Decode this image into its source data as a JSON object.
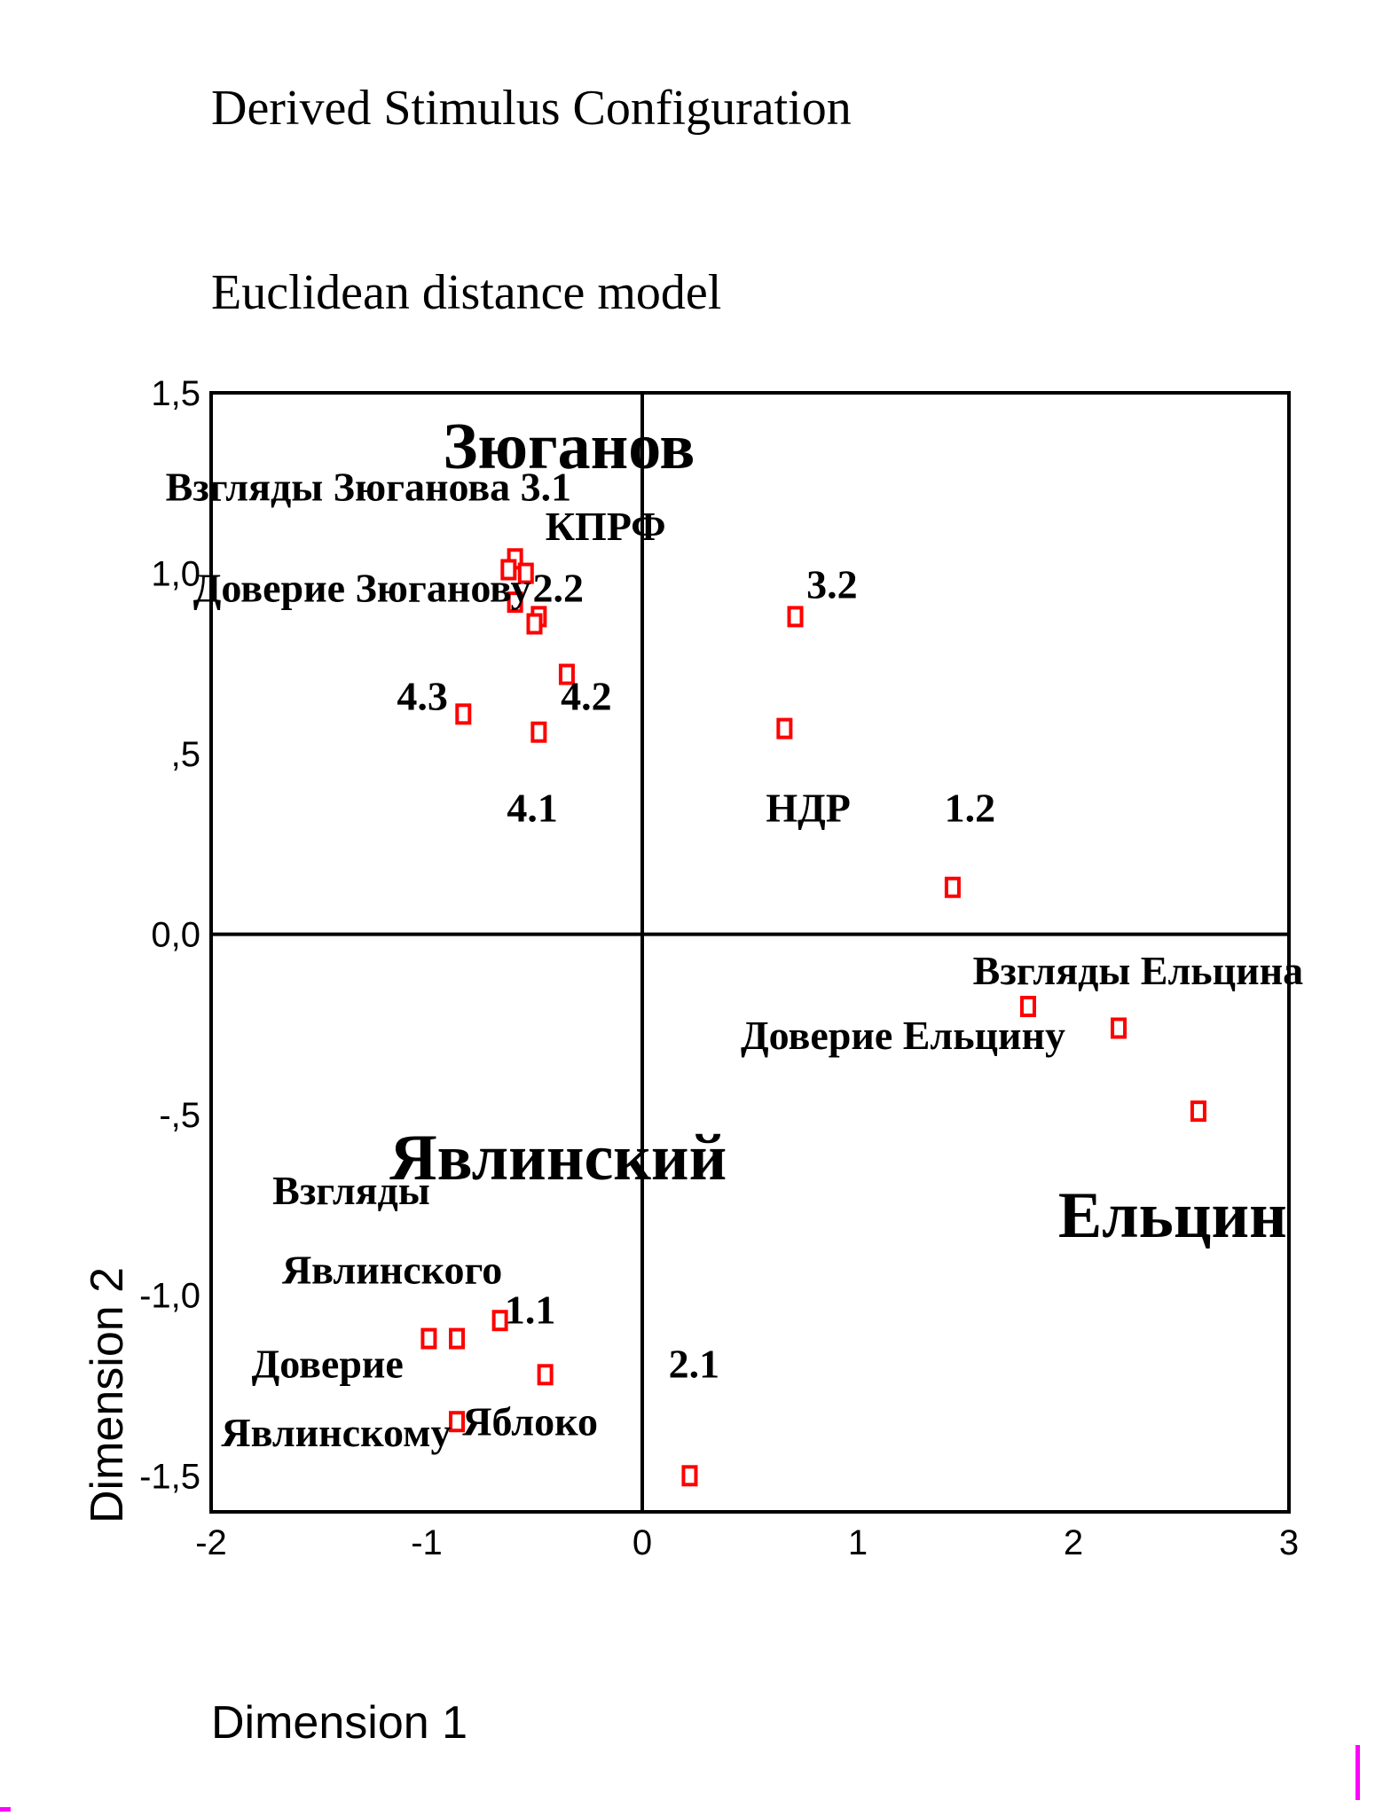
{
  "chart_data": {
    "type": "scatter",
    "title": "Derived Stimulus Configuration",
    "subtitle": "Euclidean distance model",
    "xlabel": "Dimension 1",
    "ylabel": "Dimension 2",
    "xlim": [
      -2,
      3
    ],
    "ylim": [
      -1.6,
      1.5
    ],
    "xticks": [
      {
        "value": -2,
        "label": "-2"
      },
      {
        "value": -1,
        "label": "-1"
      },
      {
        "value": 0,
        "label": "0"
      },
      {
        "value": 1,
        "label": "1"
      },
      {
        "value": 2,
        "label": "2"
      },
      {
        "value": 3,
        "label": "3"
      }
    ],
    "yticks": [
      {
        "value": 1.5,
        "label": "1,5"
      },
      {
        "value": 1.0,
        "label": "1,0"
      },
      {
        "value": 0.5,
        "label": ",5"
      },
      {
        "value": 0.0,
        "label": "0,0"
      },
      {
        "value": -0.5,
        "label": "-,5"
      },
      {
        "value": -1.0,
        "label": "-1,0"
      },
      {
        "value": -1.5,
        "label": "-1,5"
      }
    ],
    "points": [
      {
        "x": -0.59,
        "y": 1.04
      },
      {
        "x": -0.62,
        "y": 1.01
      },
      {
        "x": -0.54,
        "y": 1.0
      },
      {
        "x": -0.59,
        "y": 0.92
      },
      {
        "x": -0.48,
        "y": 0.88
      },
      {
        "x": -0.5,
        "y": 0.86
      },
      {
        "x": -0.35,
        "y": 0.72
      },
      {
        "x": -0.83,
        "y": 0.61
      },
      {
        "x": -0.48,
        "y": 0.56
      },
      {
        "x": 0.71,
        "y": 0.88
      },
      {
        "x": 0.66,
        "y": 0.57
      },
      {
        "x": 1.44,
        "y": 0.13
      },
      {
        "x": 1.79,
        "y": -0.2
      },
      {
        "x": 2.21,
        "y": -0.26
      },
      {
        "x": 2.58,
        "y": -0.49
      },
      {
        "x": -0.66,
        "y": -1.07
      },
      {
        "x": -0.99,
        "y": -1.12
      },
      {
        "x": -0.86,
        "y": -1.12
      },
      {
        "x": -0.45,
        "y": -1.22
      },
      {
        "x": -0.86,
        "y": -1.35
      },
      {
        "x": 0.22,
        "y": -1.5
      }
    ],
    "annotations": [
      {
        "text": "Зюганов",
        "size": "large",
        "x": -0.34,
        "y": 1.35
      },
      {
        "text": "Взгляды Зюганова 3.1",
        "size": "normal",
        "x": -1.27,
        "y": 1.24
      },
      {
        "text": "КПРФ",
        "size": "normal",
        "x": -0.17,
        "y": 1.13
      },
      {
        "text": "Доверие Зюганову",
        "size": "normal",
        "x": -1.3,
        "y": 0.96
      },
      {
        "text": "2.2",
        "size": "normal",
        "x": -0.39,
        "y": 0.96
      },
      {
        "text": "3.2",
        "size": "normal",
        "x": 0.88,
        "y": 0.97
      },
      {
        "text": "4.3",
        "size": "normal",
        "x": -1.02,
        "y": 0.66
      },
      {
        "text": "4.2",
        "size": "normal",
        "x": -0.26,
        "y": 0.66
      },
      {
        "text": "4.1",
        "size": "normal",
        "x": -0.51,
        "y": 0.35
      },
      {
        "text": "НДР",
        "size": "normal",
        "x": 0.77,
        "y": 0.35
      },
      {
        "text": "1.2",
        "size": "normal",
        "x": 1.52,
        "y": 0.35
      },
      {
        "text": "Взгляды Ельцина",
        "size": "normal",
        "x": 2.3,
        "y": -0.1
      },
      {
        "text": "Доверие Ельцину",
        "size": "normal",
        "x": 1.21,
        "y": -0.28
      },
      {
        "text": "Явлинский",
        "size": "large",
        "x": -0.39,
        "y": -0.62
      },
      {
        "text": "Ельцин",
        "size": "large",
        "x": 2.46,
        "y": -0.78
      },
      {
        "text": "Взгляды",
        "size": "normal",
        "x": -1.35,
        "y": -0.71
      },
      {
        "text": "Явлинского",
        "size": "normal",
        "x": -1.16,
        "y": -0.93
      },
      {
        "text": "1.1",
        "size": "normal",
        "x": -0.52,
        "y": -1.04
      },
      {
        "text": "Доверие",
        "size": "normal",
        "x": -1.46,
        "y": -1.19
      },
      {
        "text": "2.1",
        "size": "normal",
        "x": 0.24,
        "y": -1.19
      },
      {
        "text": "Явлинскому",
        "size": "normal",
        "x": -1.42,
        "y": -1.38
      },
      {
        "text": "Яблоко",
        "size": "normal",
        "x": -0.52,
        "y": -1.35
      }
    ],
    "grid": false,
    "legend": "none"
  }
}
